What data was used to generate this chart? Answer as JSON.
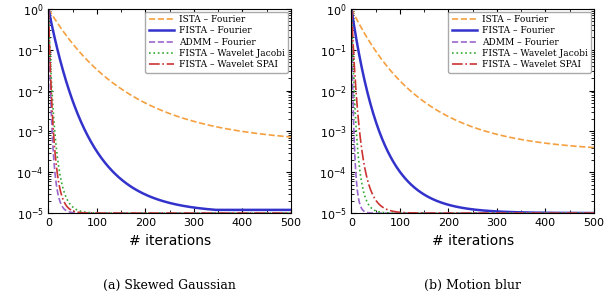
{
  "xlim": [
    0,
    500
  ],
  "ylim": [
    1e-05,
    1.0
  ],
  "xlabel": "# iterations",
  "subplot_a_title": "(a) Skewed Gaussian",
  "subplot_b_title": "(b) Motion blur",
  "legend_labels": [
    "ISTA – Fourier",
    "FISTA – Fourier",
    "ADMM – Fourier",
    "FISTA – Wavelet Jacobi",
    "FISTA – Wavelet SPAI"
  ],
  "colors": {
    "ista_fourier": "#f5a040",
    "fista_fourier": "#3333cc",
    "admm_fourier": "#9966cc",
    "fista_wavelet_jacobi": "#33aa33",
    "fista_wavelet_spai": "#cc3333"
  },
  "line_styles": {
    "ista_fourier": "--",
    "fista_fourier": "-",
    "admm_fourier": "--",
    "fista_wavelet_jacobi": ":",
    "fista_wavelet_spai": "-."
  },
  "line_widths": {
    "ista_fourier": 1.2,
    "fista_fourier": 1.8,
    "admm_fourier": 1.2,
    "fista_wavelet_jacobi": 1.2,
    "fista_wavelet_spai": 1.2
  },
  "n_iters": 500
}
